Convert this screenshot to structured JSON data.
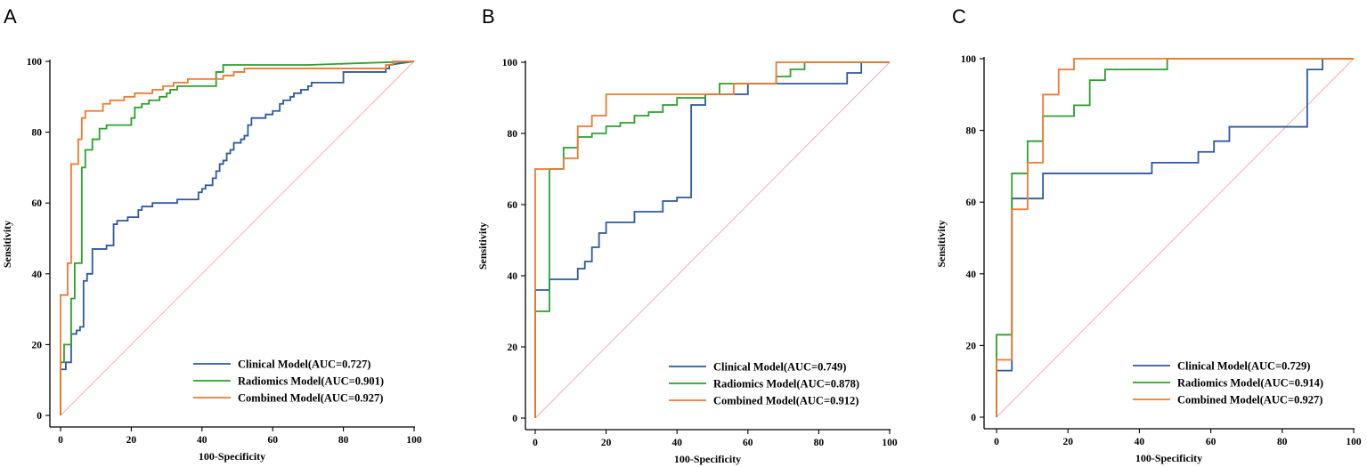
{
  "colors": {
    "clinical": "#2c5aa0",
    "radiomics": "#2ca02c",
    "combined": "#f07a2e",
    "reference": "#f4a6a6"
  },
  "chart_data": [
    {
      "panel": "A",
      "type": "line",
      "xlabel": "100-Specificity",
      "ylabel": "Sensitivity",
      "xlim": [
        0,
        100
      ],
      "ylim": [
        0,
        100
      ],
      "xticks": [
        0,
        20,
        40,
        60,
        80,
        100
      ],
      "yticks": [
        0,
        20,
        40,
        60,
        80,
        100
      ],
      "legend_position": "bottom-right",
      "series": [
        {
          "name": "Clinical Model(AUC=0.727)",
          "key": "clinical",
          "x": [
            0,
            0,
            1.5,
            1.5,
            3,
            3,
            4.5,
            4.5,
            5.5,
            5.5,
            6.5,
            6.5,
            7.5,
            7.5,
            9,
            9,
            13,
            13,
            15,
            15,
            16,
            16,
            19,
            19,
            22,
            22,
            23,
            23,
            26,
            26,
            29,
            29,
            33,
            33,
            36,
            36,
            39,
            39,
            40,
            40,
            41,
            41,
            43,
            43,
            44,
            44,
            45,
            45,
            46,
            46,
            47,
            47,
            48,
            48,
            49,
            49,
            50,
            50,
            51,
            51,
            52,
            52,
            53,
            53,
            54,
            54,
            57,
            57,
            58,
            58,
            59,
            59,
            60,
            60,
            61,
            61,
            62,
            62,
            63,
            63,
            64,
            64,
            65,
            65,
            66,
            66,
            68,
            68,
            70,
            70,
            71,
            71,
            78,
            78,
            80,
            80,
            92,
            92,
            93,
            93,
            100
          ],
          "y": [
            0,
            13,
            13,
            15,
            15,
            23,
            23,
            24,
            24,
            25,
            25,
            38,
            38,
            40,
            40,
            47,
            47,
            48,
            48,
            54,
            54,
            55,
            55,
            56,
            56,
            58,
            58,
            59,
            59,
            60,
            60,
            60,
            60,
            61,
            61,
            61,
            61,
            63,
            63,
            64,
            64,
            65,
            65,
            67,
            67,
            69,
            69,
            71,
            71,
            72,
            72,
            74,
            74,
            75,
            75,
            77,
            77,
            77,
            77,
            78,
            78,
            79,
            79,
            82,
            82,
            84,
            84,
            84,
            84,
            85,
            85,
            85,
            85,
            86,
            86,
            86,
            86,
            88,
            88,
            89,
            89,
            89,
            89,
            90,
            90,
            91,
            91,
            92,
            92,
            93,
            93,
            94,
            94,
            94,
            94,
            97,
            97,
            98,
            98,
            99,
            100
          ]
        },
        {
          "name": "Radiomics Model(AUC=0.901)",
          "key": "radiomics",
          "x": [
            0,
            0,
            1,
            1,
            3,
            3,
            4,
            4,
            6,
            6,
            7,
            7,
            9,
            9,
            11,
            11,
            13,
            13,
            20,
            20,
            21,
            21,
            23,
            23,
            25,
            25,
            28,
            28,
            30,
            30,
            31,
            31,
            33,
            33,
            44,
            44,
            46,
            46,
            70,
            70,
            100
          ],
          "y": [
            0,
            15,
            15,
            20,
            20,
            33,
            33,
            43,
            43,
            70,
            70,
            75,
            75,
            78,
            78,
            81,
            81,
            82,
            82,
            84,
            84,
            87,
            87,
            88,
            88,
            89,
            89,
            90,
            90,
            91,
            91,
            92,
            92,
            93,
            93,
            97,
            97,
            99,
            99,
            99,
            100
          ]
        },
        {
          "name": "Combined Model(AUC=0.927)",
          "key": "combined",
          "x": [
            0,
            0,
            2,
            2,
            3,
            3,
            5,
            5,
            6,
            6,
            7,
            7,
            9,
            9,
            12,
            12,
            14,
            14,
            16,
            16,
            18,
            18,
            21,
            21,
            23,
            23,
            26,
            26,
            29,
            29,
            32,
            32,
            36,
            36,
            44,
            44,
            46,
            46,
            49,
            49,
            52,
            52,
            92,
            92,
            94,
            94,
            100
          ],
          "y": [
            0,
            34,
            34,
            43,
            43,
            71,
            71,
            78,
            78,
            84,
            84,
            86,
            86,
            86,
            86,
            88,
            88,
            89,
            89,
            89,
            89,
            90,
            90,
            91,
            91,
            91,
            91,
            92,
            92,
            93,
            93,
            94,
            94,
            95,
            95,
            95,
            95,
            96,
            96,
            97,
            97,
            98,
            98,
            99,
            99,
            100,
            100
          ]
        }
      ]
    },
    {
      "panel": "B",
      "type": "line",
      "xlabel": "100-Specificity",
      "ylabel": "Sensitivity",
      "xlim": [
        0,
        100
      ],
      "ylim": [
        0,
        100
      ],
      "xticks": [
        0,
        20,
        40,
        60,
        80,
        100
      ],
      "yticks": [
        0,
        20,
        40,
        60,
        80,
        100
      ],
      "legend_position": "bottom-right",
      "series": [
        {
          "name": "Clinical Model(AUC=0.749)",
          "key": "clinical",
          "x": [
            0,
            0,
            4,
            4,
            12,
            12,
            14,
            14,
            16,
            16,
            18,
            18,
            20,
            20,
            24,
            24,
            28,
            28,
            36,
            36,
            40,
            40,
            44,
            44,
            48,
            48,
            56,
            56,
            60,
            60,
            88,
            88,
            92,
            92,
            100
          ],
          "y": [
            0,
            36,
            36,
            39,
            39,
            42,
            42,
            44,
            44,
            48,
            48,
            52,
            52,
            55,
            55,
            55,
            55,
            58,
            58,
            61,
            61,
            62,
            62,
            88,
            88,
            91,
            91,
            91,
            91,
            94,
            94,
            97,
            97,
            100,
            100
          ]
        },
        {
          "name": "Radiomics Model(AUC=0.878)",
          "key": "radiomics",
          "x": [
            0,
            0,
            4,
            4,
            8,
            8,
            12,
            12,
            16,
            16,
            20,
            20,
            24,
            24,
            28,
            28,
            32,
            32,
            36,
            36,
            40,
            40,
            48,
            48,
            52,
            52,
            56,
            56,
            68,
            68,
            72,
            72,
            76,
            76,
            100
          ],
          "y": [
            0,
            30,
            30,
            70,
            70,
            76,
            76,
            79,
            79,
            80,
            80,
            82,
            82,
            83,
            83,
            85,
            85,
            86,
            86,
            88,
            88,
            90,
            90,
            91,
            91,
            94,
            94,
            94,
            94,
            96,
            96,
            98,
            98,
            100,
            100
          ]
        },
        {
          "name": "Combined Model(AUC=0.912)",
          "key": "combined",
          "x": [
            0,
            0,
            8,
            8,
            12,
            12,
            16,
            16,
            20,
            20,
            24,
            24,
            32,
            32,
            40,
            40,
            48,
            48,
            56,
            56,
            68,
            68,
            100
          ],
          "y": [
            0,
            70,
            70,
            73,
            73,
            82,
            82,
            85,
            85,
            91,
            91,
            91,
            91,
            91,
            91,
            91,
            91,
            91,
            91,
            94,
            94,
            100,
            100
          ]
        }
      ]
    },
    {
      "panel": "C",
      "type": "line",
      "xlabel": "100-Specificity",
      "ylabel": "Sensitivity",
      "xlim": [
        0,
        100
      ],
      "ylim": [
        0,
        100
      ],
      "xticks": [
        0,
        20,
        40,
        60,
        80,
        100
      ],
      "yticks": [
        0,
        20,
        40,
        60,
        80,
        100
      ],
      "legend_position": "bottom-right",
      "series": [
        {
          "name": "Clinical Model(AUC=0.729)",
          "key": "clinical",
          "x": [
            0,
            0,
            4.3,
            4.3,
            8.7,
            8.7,
            13,
            13,
            43.5,
            43.5,
            56.5,
            56.5,
            60.9,
            60.9,
            65.2,
            65.2,
            87,
            87,
            91.3,
            91.3,
            100
          ],
          "y": [
            0,
            13,
            13,
            61,
            61,
            61,
            61,
            68,
            68,
            71,
            71,
            74,
            74,
            77,
            77,
            81,
            81,
            97,
            97,
            100,
            100
          ]
        },
        {
          "name": "Radiomics Model(AUC=0.914)",
          "key": "radiomics",
          "x": [
            0,
            0,
            4.3,
            4.3,
            8.7,
            8.7,
            13,
            13,
            21.7,
            21.7,
            26.1,
            26.1,
            30.4,
            30.4,
            47.8,
            47.8,
            100
          ],
          "y": [
            0,
            23,
            23,
            68,
            68,
            77,
            77,
            84,
            84,
            87,
            87,
            94,
            94,
            97,
            97,
            100,
            100
          ]
        },
        {
          "name": "Combined Model(AUC=0.927)",
          "key": "combined",
          "x": [
            0,
            0,
            4.3,
            4.3,
            8.7,
            8.7,
            13,
            13,
            17.4,
            17.4,
            21.7,
            21.7,
            100
          ],
          "y": [
            0,
            16,
            16,
            58,
            58,
            71,
            71,
            90,
            90,
            97,
            97,
            100,
            100
          ]
        }
      ]
    }
  ]
}
